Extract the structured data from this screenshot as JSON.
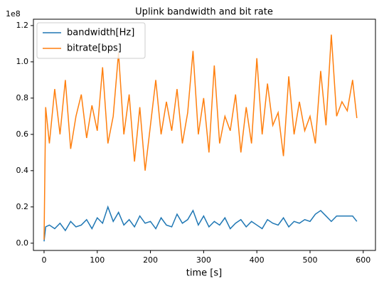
{
  "chart_data": {
    "type": "line",
    "title": "Uplink bandwidth and bit rate",
    "x_label": "time [s]",
    "y_offset_label": "1e8",
    "x": [
      0,
      3,
      10,
      20,
      30,
      40,
      50,
      60,
      70,
      80,
      90,
      100,
      110,
      120,
      130,
      140,
      150,
      160,
      170,
      180,
      190,
      200,
      210,
      220,
      230,
      240,
      250,
      260,
      270,
      280,
      290,
      300,
      310,
      320,
      330,
      340,
      350,
      360,
      370,
      380,
      390,
      400,
      410,
      420,
      430,
      440,
      450,
      460,
      470,
      480,
      490,
      500,
      510,
      520,
      530,
      540,
      550,
      560,
      570,
      580,
      588
    ],
    "series": [
      {
        "name": "bandwidth[Hz]",
        "color": "#1f77b4",
        "values": [
          0.01,
          0.09,
          0.1,
          0.08,
          0.11,
          0.07,
          0.12,
          0.09,
          0.1,
          0.13,
          0.08,
          0.14,
          0.11,
          0.2,
          0.12,
          0.17,
          0.1,
          0.13,
          0.09,
          0.15,
          0.11,
          0.12,
          0.08,
          0.14,
          0.1,
          0.09,
          0.16,
          0.11,
          0.13,
          0.18,
          0.1,
          0.15,
          0.09,
          0.12,
          0.1,
          0.14,
          0.08,
          0.11,
          0.13,
          0.09,
          0.12,
          0.1,
          0.08,
          0.13,
          0.11,
          0.1,
          0.14,
          0.09,
          0.12,
          0.11,
          0.13,
          0.12,
          0.16,
          0.18,
          0.15,
          0.12,
          0.15,
          0.15,
          0.15,
          0.15,
          0.12
        ]
      },
      {
        "name": "bitrate[bps]",
        "color": "#ff7f0e",
        "values": [
          0.02,
          0.75,
          0.55,
          0.85,
          0.6,
          0.9,
          0.52,
          0.7,
          0.82,
          0.58,
          0.76,
          0.62,
          0.97,
          0.55,
          0.7,
          1.05,
          0.6,
          0.82,
          0.45,
          0.75,
          0.4,
          0.65,
          0.9,
          0.6,
          0.78,
          0.62,
          0.85,
          0.55,
          0.72,
          1.06,
          0.6,
          0.8,
          0.5,
          0.98,
          0.55,
          0.7,
          0.62,
          0.82,
          0.5,
          0.75,
          0.55,
          1.02,
          0.6,
          0.88,
          0.65,
          0.72,
          0.48,
          0.92,
          0.6,
          0.78,
          0.62,
          0.7,
          0.55,
          0.95,
          0.65,
          1.15,
          0.7,
          0.78,
          0.73,
          0.9,
          0.69
        ]
      }
    ],
    "xlim": [
      -20,
      623
    ],
    "ylim": [
      -0.04,
      1.235
    ],
    "xticks": [
      0,
      100,
      200,
      300,
      400,
      500,
      600
    ],
    "yticks": [
      {
        "value": 0,
        "label": "0.0"
      },
      0.2,
      0.4,
      0.6,
      0.8,
      {
        "value": 1,
        "label": "1.0"
      },
      1.2
    ],
    "legend": "upper left"
  }
}
